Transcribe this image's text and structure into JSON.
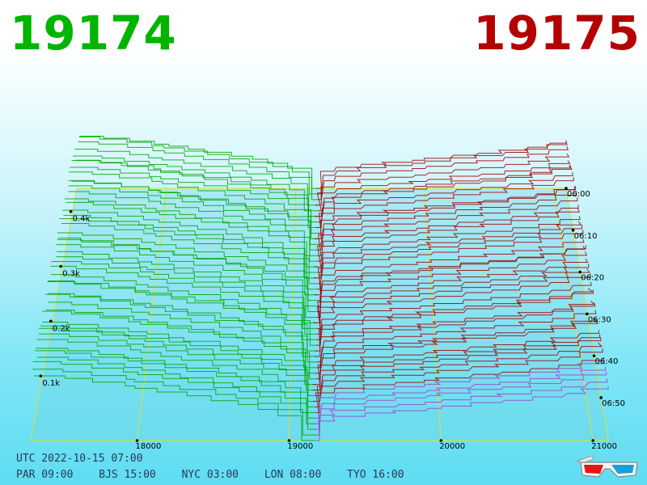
{
  "header": {
    "bid_price": "19174",
    "ask_price": "19175",
    "bid_color": "#00b400",
    "ask_color": "#b40000"
  },
  "chart_data": {
    "type": "area",
    "style": "3d-depth-chart-history",
    "bid_color": "#00a800",
    "ask_color": "#a00000",
    "x_ticks": [
      "18000",
      "19000",
      "20000",
      "21000"
    ],
    "x_tick_values": [
      18000,
      19000,
      20000,
      21000
    ],
    "xlim": [
      17300,
      21100
    ],
    "z_ticks": [
      "0.1k",
      "0.2k",
      "0.3k",
      "0.4k"
    ],
    "z_tick_values": [
      100,
      200,
      300,
      400
    ],
    "time_ticks": [
      "06:00",
      "06:10",
      "06:20",
      "06:30",
      "06:40",
      "06:50"
    ],
    "time_range_min": [
      0,
      60
    ],
    "mid_price": 19174.5
  },
  "footer": {
    "utc": "UTC 2022-10-15 07:00",
    "timezones": [
      "PAR 09:00",
      "BJS 15:00",
      "NYC 03:00",
      "LON 08:00",
      "TYO 16:00"
    ]
  },
  "icons": {
    "anaglyph": "3d-glasses-icon"
  }
}
